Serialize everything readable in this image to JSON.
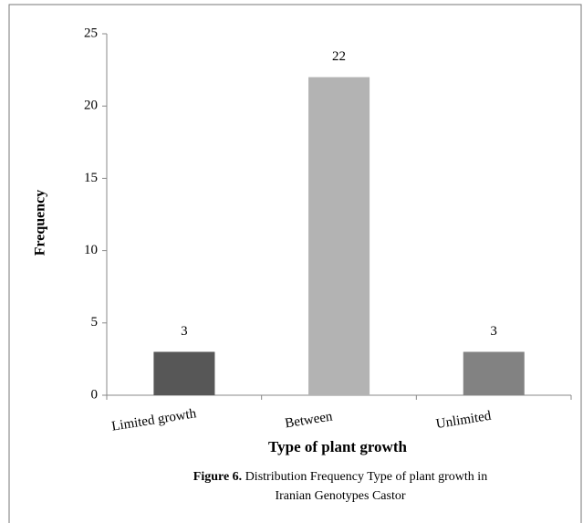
{
  "chart_data": {
    "type": "bar",
    "categories": [
      "Limited growth",
      "Between",
      "Unlimited"
    ],
    "values": [
      3,
      22,
      3
    ],
    "colors": [
      "#575757",
      "#b3b3b3",
      "#828282"
    ],
    "ylim": [
      0,
      25
    ],
    "yticks": [
      0,
      5,
      10,
      15,
      20,
      25
    ],
    "ylabel": "Frequency",
    "xlabel": "Type of plant growth",
    "caption_label": "Figure 6.",
    "caption_lines": [
      "Distribution Frequency Type of plant growth in",
      "Iranian Genotypes Castor"
    ],
    "grid": false
  }
}
